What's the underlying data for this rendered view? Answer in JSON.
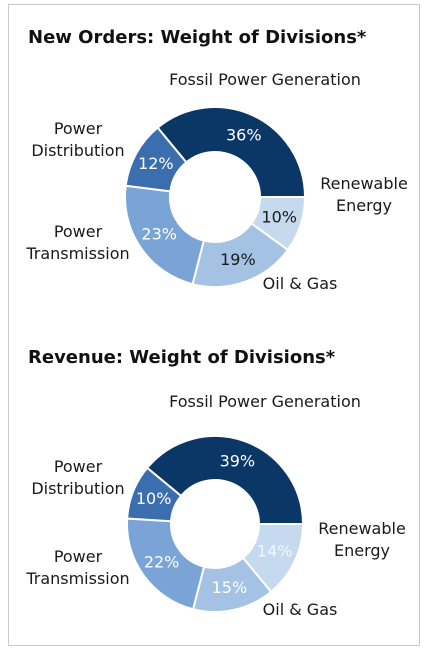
{
  "chart_data": [
    {
      "type": "donut",
      "title": "New Orders: Weight of Divisions*",
      "categories": [
        "Fossil Power Generation",
        "Renewable Energy",
        "Oil & Gas",
        "Power Transmission",
        "Power Distribution"
      ],
      "values": [
        36,
        10,
        19,
        23,
        12
      ],
      "value_labels": [
        "36%",
        "10%",
        "19%",
        "23%",
        "12%"
      ],
      "colors": [
        "#0b3767",
        "#c5d9ef",
        "#a4c2e3",
        "#7aa4d5",
        "#3a6eae"
      ],
      "label_colors": [
        "#ffffff",
        "#1a1a1a",
        "#1a1a1a",
        "#ffffff",
        "#ffffff"
      ]
    },
    {
      "type": "donut",
      "title": "Revenue: Weight of Divisions*",
      "categories": [
        "Fossil Power Generation",
        "Renewable Energy",
        "Oil & Gas",
        "Power Transmission",
        "Power Distribution"
      ],
      "values": [
        39,
        14,
        15,
        22,
        10
      ],
      "value_labels": [
        "39%",
        "14%",
        "15%",
        "22%",
        "10%"
      ],
      "colors": [
        "#0b3767",
        "#c5d9ef",
        "#a4c2e3",
        "#7aa4d5",
        "#3a6eae"
      ],
      "label_colors": [
        "#ffffff",
        "#f4f7fb",
        "#ffffff",
        "#ffffff",
        "#ffffff"
      ]
    }
  ]
}
